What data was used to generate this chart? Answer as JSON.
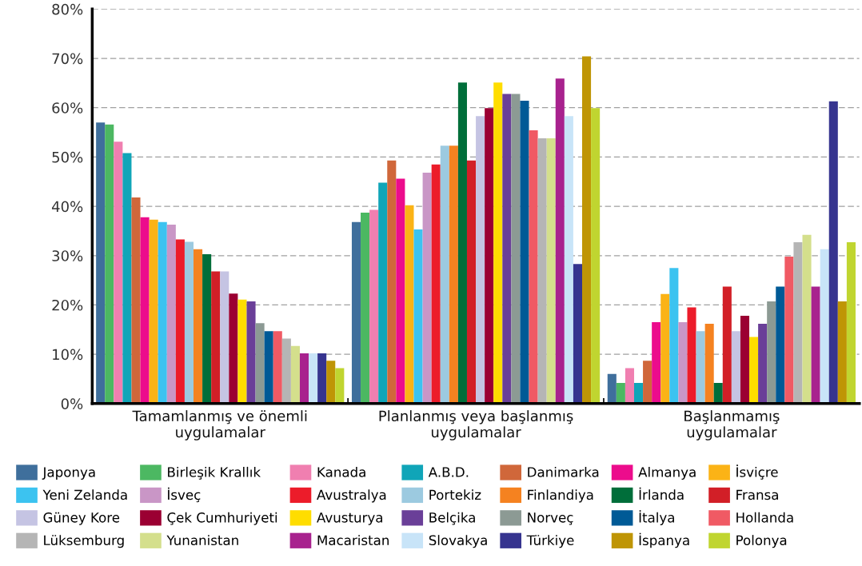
{
  "chart_data": {
    "type": "bar",
    "categories": [
      "Tamamlanmış ve önemli\nuygulamalar",
      "Planlanmış veya başlanmış\nuygulamalar",
      "Başlanmamış\nuygulamalar"
    ],
    "ylim": [
      0,
      80
    ],
    "yticks": [
      {
        "value": 0,
        "label": "0%"
      },
      {
        "value": 10,
        "label": "10%"
      },
      {
        "value": 20,
        "label": "20%"
      },
      {
        "value": 30,
        "label": "30%"
      },
      {
        "value": 40,
        "label": "40%"
      },
      {
        "value": 50,
        "label": "50%"
      },
      {
        "value": 60,
        "label": "60%"
      },
      {
        "value": 70,
        "label": "70%"
      },
      {
        "value": 80,
        "label": "80%"
      }
    ],
    "grid": "y",
    "legend": "bottom",
    "series": [
      {
        "name": "Japonya",
        "color": "#3f6f9c",
        "values": [
          57.0,
          36.8,
          6.0
        ]
      },
      {
        "name": "Birleşik Krallık",
        "color": "#4cb862",
        "values": [
          56.6,
          38.7,
          4.2
        ]
      },
      {
        "name": "Kanada",
        "color": "#f07fb0",
        "values": [
          53.1,
          39.3,
          7.2
        ]
      },
      {
        "name": "A.B.D.",
        "color": "#10a5b8",
        "values": [
          50.8,
          44.8,
          4.2
        ]
      },
      {
        "name": "Danimarka",
        "color": "#d0673a",
        "values": [
          41.8,
          49.3,
          8.7
        ]
      },
      {
        "name": "Almanya",
        "color": "#ec0c8c",
        "values": [
          37.8,
          45.6,
          16.5
        ]
      },
      {
        "name": "İsviçre",
        "color": "#fbb316",
        "values": [
          37.3,
          40.2,
          22.2
        ]
      },
      {
        "name": "Yeni Zelanda",
        "color": "#3cc3f0",
        "values": [
          36.8,
          35.3,
          27.5
        ]
      },
      {
        "name": "İsveç",
        "color": "#c996c6",
        "values": [
          36.3,
          46.8,
          16.5
        ]
      },
      {
        "name": "Avustralya",
        "color": "#ec1c2a",
        "values": [
          33.3,
          48.5,
          19.5
        ]
      },
      {
        "name": "Portekiz",
        "color": "#9ccae0",
        "values": [
          32.8,
          52.3,
          14.7
        ]
      },
      {
        "name": "Finlandiya",
        "color": "#f58220",
        "values": [
          31.3,
          52.3,
          16.2
        ]
      },
      {
        "name": "İrlanda",
        "color": "#006e3a",
        "values": [
          30.3,
          65.1,
          4.2
        ]
      },
      {
        "name": "Fransa",
        "color": "#d21f27",
        "values": [
          26.8,
          49.3,
          23.7
        ]
      },
      {
        "name": "Güney Kore",
        "color": "#c5c4e3",
        "values": [
          26.8,
          58.3,
          14.7
        ]
      },
      {
        "name": "Çek Cumhuriyeti",
        "color": "#9b0032",
        "values": [
          22.3,
          59.9,
          17.8
        ]
      },
      {
        "name": "Avusturya",
        "color": "#ffdd00",
        "values": [
          21.1,
          65.1,
          13.5
        ]
      },
      {
        "name": "Belçika",
        "color": "#6a3f98",
        "values": [
          20.7,
          62.8,
          16.2
        ]
      },
      {
        "name": "Norveç",
        "color": "#8c9a94",
        "values": [
          16.3,
          62.8,
          20.7
        ]
      },
      {
        "name": "İtalya",
        "color": "#005a96",
        "values": [
          14.7,
          61.4,
          23.7
        ]
      },
      {
        "name": "Hollanda",
        "color": "#f05a64",
        "values": [
          14.7,
          55.4,
          29.8
        ]
      },
      {
        "name": "Lüksemburg",
        "color": "#b5b5b5",
        "values": [
          13.2,
          53.8,
          32.7
        ]
      },
      {
        "name": "Yunanistan",
        "color": "#d4df8c",
        "values": [
          11.7,
          53.8,
          34.2
        ]
      },
      {
        "name": "Macaristan",
        "color": "#a8228e",
        "values": [
          10.2,
          65.9,
          23.7
        ]
      },
      {
        "name": "Slovakya",
        "color": "#c8e4f8",
        "values": [
          10.2,
          58.3,
          31.3
        ]
      },
      {
        "name": "Türkiye",
        "color": "#36348f",
        "values": [
          10.2,
          28.3,
          61.3
        ]
      },
      {
        "name": "İspanya",
        "color": "#bf9505",
        "values": [
          8.7,
          70.4,
          20.7
        ]
      },
      {
        "name": "Polonya",
        "color": "#c0d530",
        "values": [
          7.2,
          59.9,
          32.7
        ]
      }
    ]
  }
}
